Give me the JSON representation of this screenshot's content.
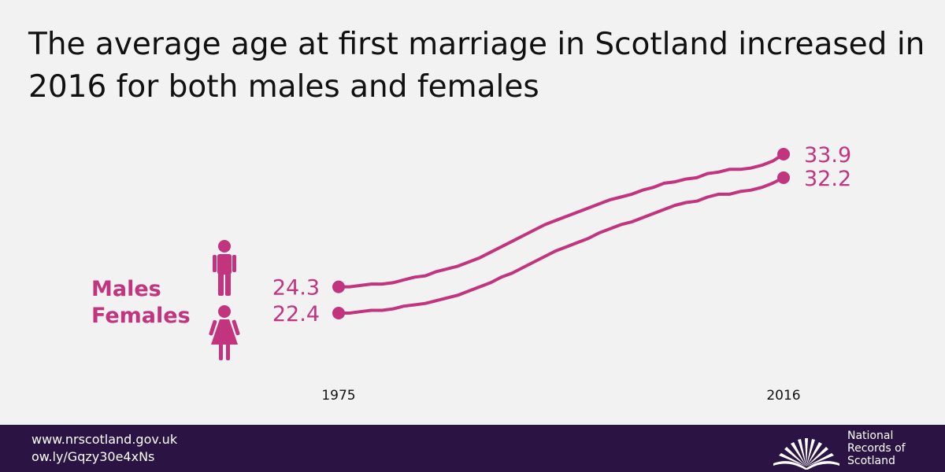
{
  "header": {
    "title": "The average age at first marriage in Scotland increased in 2016 for both males and females"
  },
  "colors": {
    "accent": "#c2347e",
    "footer_bg": "#2b1444",
    "background": "#f2f2f2"
  },
  "icons": {
    "male": "male-figure-icon",
    "female": "female-figure-icon",
    "logo": "open-book-fan-icon"
  },
  "chart_data": {
    "type": "line",
    "title": "The average age at first marriage in Scotland increased in 2016 for both males and females",
    "xlabel": "",
    "ylabel": "",
    "x_tick_labels": [
      "1975",
      "2016"
    ],
    "xlim": [
      1975,
      2016
    ],
    "ylim": [
      22.4,
      33.9
    ],
    "grid": false,
    "legend": "left",
    "x": [
      1975,
      1976,
      1977,
      1978,
      1979,
      1980,
      1981,
      1982,
      1983,
      1984,
      1985,
      1986,
      1987,
      1988,
      1989,
      1990,
      1991,
      1992,
      1993,
      1994,
      1995,
      1996,
      1997,
      1998,
      1999,
      2000,
      2001,
      2002,
      2003,
      2004,
      2005,
      2006,
      2007,
      2008,
      2009,
      2010,
      2011,
      2012,
      2013,
      2014,
      2015,
      2016
    ],
    "series": [
      {
        "name": "Males",
        "start_label": "24.3",
        "end_label": "33.9",
        "values": [
          24.3,
          24.3,
          24.4,
          24.5,
          24.5,
          24.6,
          24.8,
          25.0,
          25.1,
          25.4,
          25.6,
          25.8,
          26.1,
          26.4,
          26.8,
          27.2,
          27.6,
          28.0,
          28.4,
          28.8,
          29.1,
          29.4,
          29.7,
          30.0,
          30.3,
          30.6,
          30.8,
          31.0,
          31.3,
          31.5,
          31.8,
          31.9,
          32.1,
          32.2,
          32.5,
          32.6,
          32.8,
          32.8,
          32.9,
          33.1,
          33.4,
          33.9
        ]
      },
      {
        "name": "Females",
        "start_label": "22.4",
        "end_label": "32.2",
        "values": [
          22.4,
          22.4,
          22.5,
          22.6,
          22.6,
          22.7,
          22.9,
          23.0,
          23.1,
          23.3,
          23.5,
          23.7,
          24.0,
          24.3,
          24.6,
          25.0,
          25.3,
          25.7,
          26.1,
          26.5,
          26.9,
          27.2,
          27.5,
          27.8,
          28.2,
          28.5,
          28.8,
          29.0,
          29.3,
          29.6,
          29.9,
          30.2,
          30.4,
          30.5,
          30.8,
          31.0,
          31.0,
          31.2,
          31.3,
          31.5,
          31.8,
          32.2
        ]
      }
    ]
  },
  "footer": {
    "website": "www.nrscotland.gov.uk",
    "short_link": "ow.ly/Gqzy30e4xNs",
    "logo_line1": "National",
    "logo_line2": "Records of",
    "logo_line3": "Scotland"
  }
}
